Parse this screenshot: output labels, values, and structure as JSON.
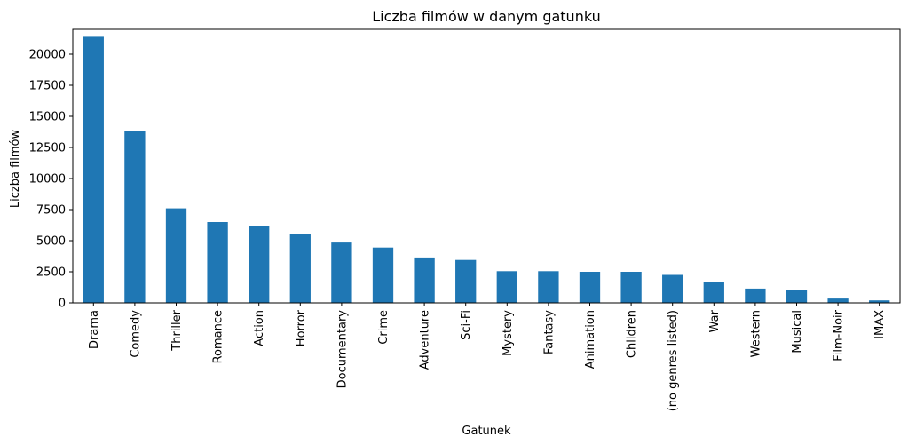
{
  "chart_data": {
    "type": "bar",
    "title": "Liczba filmów w danym gatunku",
    "xlabel": "Gatunek",
    "ylabel": "Liczba filmów",
    "categories": [
      "Drama",
      "Comedy",
      "Thriller",
      "Romance",
      "Action",
      "Horror",
      "Documentary",
      "Crime",
      "Adventure",
      "Sci-Fi",
      "Mystery",
      "Fantasy",
      "Animation",
      "Children",
      "(no genres listed)",
      "War",
      "Western",
      "Musical",
      "Film-Noir",
      "IMAX"
    ],
    "values": [
      21400,
      13800,
      7600,
      6500,
      6150,
      5500,
      4850,
      4450,
      3650,
      3450,
      2550,
      2550,
      2500,
      2500,
      2250,
      1650,
      1150,
      1050,
      350,
      200
    ],
    "ylim": [
      0,
      22000
    ],
    "yticks": [
      0,
      2500,
      5000,
      7500,
      10000,
      12500,
      15000,
      17500,
      20000
    ],
    "bar_color": "#1f77b4",
    "grid": false,
    "legend": "none"
  }
}
